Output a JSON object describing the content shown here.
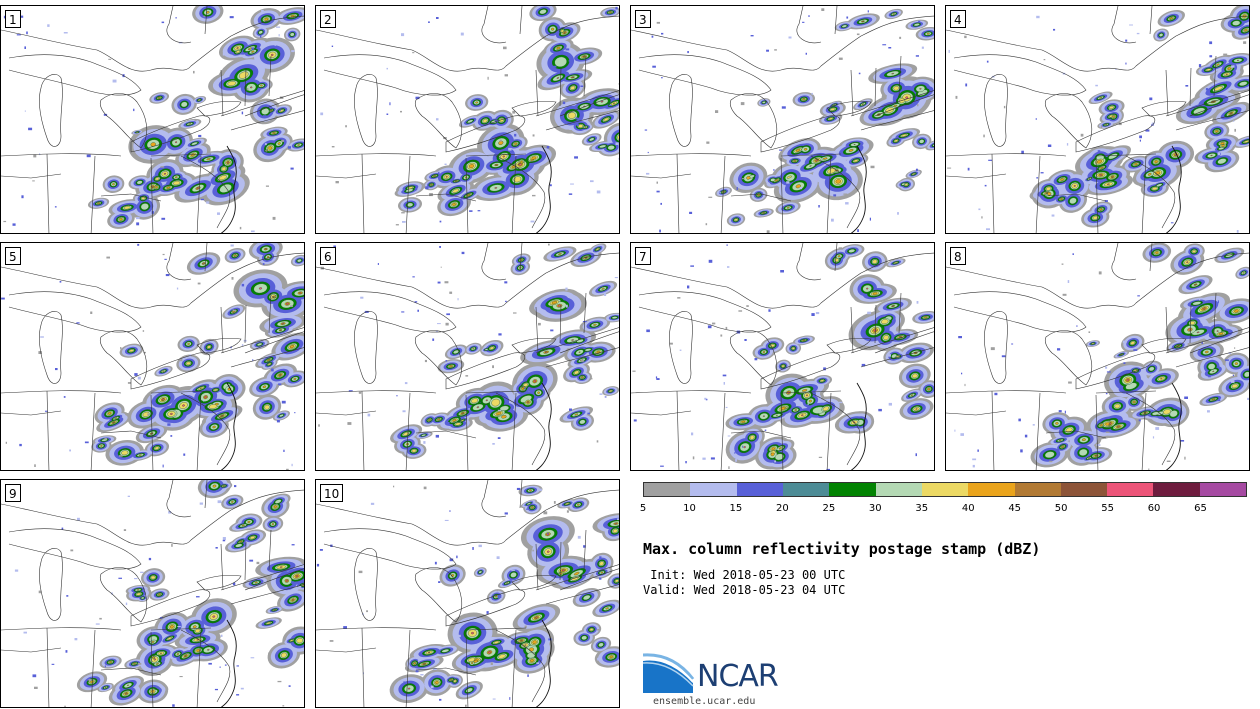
{
  "panels": [
    "1",
    "2",
    "3",
    "4",
    "5",
    "6",
    "7",
    "8",
    "9",
    "10"
  ],
  "colorbar": {
    "colors": [
      "#a0a0a0",
      "#b4bcee",
      "#5860d8",
      "#4d8c96",
      "#028302",
      "#b4d9b4",
      "#ecd964",
      "#eaa41c",
      "#b27a34",
      "#8d5438",
      "#ec5478",
      "#6e1c3e",
      "#a64aa2"
    ],
    "ticks": [
      "5",
      "10",
      "15",
      "20",
      "25",
      "30",
      "35",
      "40",
      "45",
      "50",
      "55",
      "60",
      "65"
    ]
  },
  "title": "Max. column reflectivity postage stamp (dBZ)",
  "init": " Init: Wed 2018-05-23 00 UTC",
  "valid": "Valid: Wed 2018-05-23 04 UTC",
  "logo": {
    "text": "NCAR",
    "url": "ensemble.ucar.edu"
  }
}
